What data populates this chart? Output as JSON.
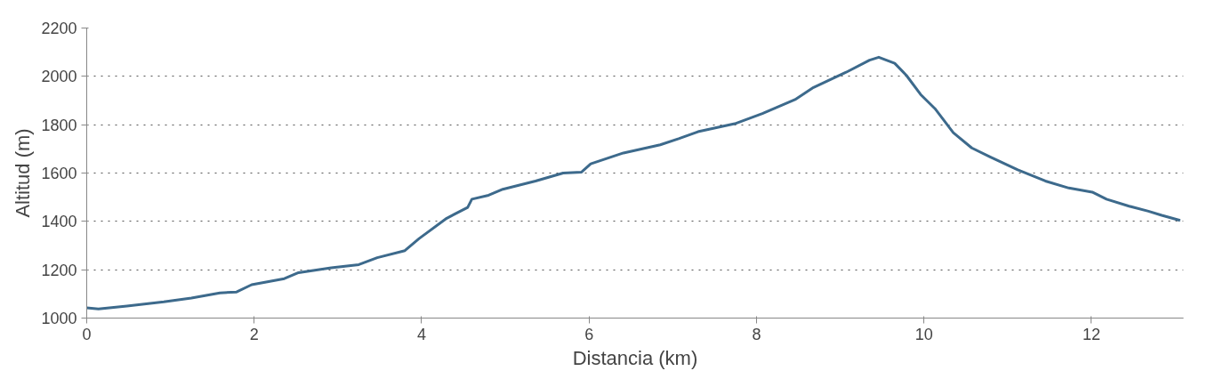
{
  "chart_data": {
    "type": "line",
    "xlabel": "Distancia (km)",
    "ylabel": "Altitud (m)",
    "x": [
      0,
      0.14,
      0.48,
      0.92,
      1.25,
      1.59,
      1.79,
      1.97,
      2.36,
      2.53,
      2.92,
      3.25,
      3.47,
      3.8,
      3.97,
      4.3,
      4.55,
      4.6,
      4.8,
      4.97,
      5.36,
      5.69,
      5.91,
      6.02,
      6.41,
      6.85,
      7.07,
      7.3,
      7.74,
      8.07,
      8.46,
      8.68,
      9.07,
      9.35,
      9.46,
      9.65,
      9.79,
      9.96,
      10.13,
      10.35,
      10.57,
      10.79,
      11.12,
      11.45,
      11.73,
      12.01,
      12.18,
      12.45,
      12.68,
      12.84,
      13.06
    ],
    "series": [
      {
        "color": "#3d6a8c",
        "values": [
          1042,
          1038,
          1050,
          1067,
          1083,
          1104,
          1108,
          1138,
          1163,
          1188,
          1208,
          1221,
          1250,
          1279,
          1329,
          1413,
          1458,
          1492,
          1508,
          1533,
          1567,
          1600,
          1604,
          1638,
          1683,
          1717,
          1742,
          1771,
          1804,
          1846,
          1904,
          1954,
          2017,
          2067,
          2079,
          2054,
          2004,
          1925,
          1867,
          1767,
          1704,
          1667,
          1613,
          1567,
          1538,
          1521,
          1492,
          1463,
          1442,
          1425,
          1404
        ]
      }
    ],
    "xlim": [
      0,
      13.1
    ],
    "ylim": [
      1000,
      2200
    ],
    "xticks": [
      0,
      2,
      4,
      6,
      8,
      10,
      12
    ],
    "yticks": [
      1000,
      1200,
      1400,
      1600,
      1800,
      2000,
      2200
    ],
    "grid": "y",
    "marker": "none",
    "line_style": "solid"
  }
}
